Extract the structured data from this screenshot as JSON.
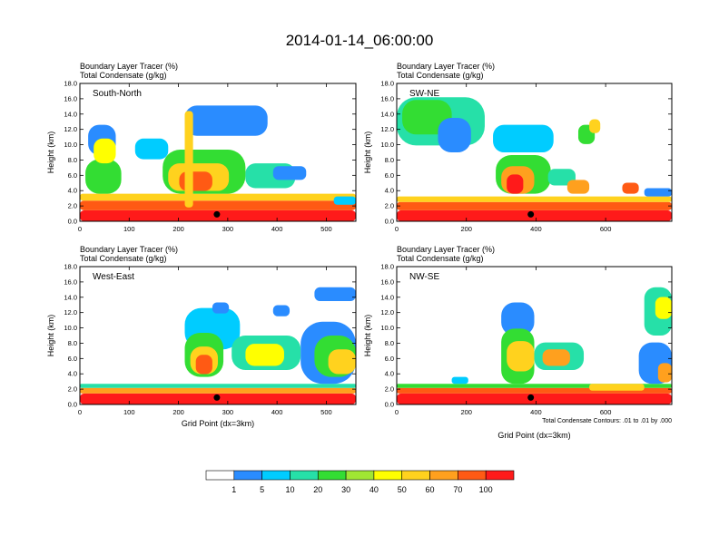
{
  "title": "2014-01-14_06:00:00",
  "field_labels": {
    "tracer": "Boundary Layer Tracer",
    "tracer_unit": "(%)",
    "condensate": "Total Condensate",
    "condensate_unit": "(g/kg)"
  },
  "contour_note": "Total Condensate Contours: .01 to .01 by .000",
  "colorbar": {
    "colors": [
      "#ffffff",
      "#2a8cff",
      "#00ccff",
      "#26e0a8",
      "#33dd33",
      "#a0e633",
      "#ffff00",
      "#ffd21e",
      "#ffa01e",
      "#ff5a14",
      "#ff1a1a"
    ],
    "labels": [
      "1",
      "5",
      "10",
      "20",
      "30",
      "40",
      "50",
      "60",
      "70",
      "100"
    ]
  },
  "chart_data": [
    {
      "type": "heatmap",
      "panel": "South-North",
      "ylabel": "Height (km)",
      "xlabel": "",
      "xlim": [
        0,
        560
      ],
      "ylim": [
        0,
        18
      ],
      "xticks": [
        "0",
        "100",
        "200",
        "300",
        "400",
        "500"
      ],
      "yticks": [
        "0.0",
        "2.0",
        "4.0",
        "6.0",
        "8.0",
        "10.0",
        "12.0",
        "14.0",
        "16.0",
        "18.0"
      ],
      "marker": {
        "x": 278,
        "y": 0.9
      }
    },
    {
      "type": "heatmap",
      "panel": "SW-NE",
      "ylabel": "Height (km)",
      "xlabel": "",
      "xlim": [
        0,
        790
      ],
      "ylim": [
        0,
        18
      ],
      "xticks": [
        "0",
        "200",
        "400",
        "600"
      ],
      "yticks": [
        "0.0",
        "2.0",
        "4.0",
        "6.0",
        "8.0",
        "10.0",
        "12.0",
        "14.0",
        "16.0",
        "18.0"
      ],
      "marker": {
        "x": 385,
        "y": 0.9
      }
    },
    {
      "type": "heatmap",
      "panel": "West-East",
      "ylabel": "Height (km)",
      "xlabel": "Grid Point (dx=3km)",
      "xlim": [
        0,
        560
      ],
      "ylim": [
        0,
        18
      ],
      "xticks": [
        "0",
        "100",
        "200",
        "300",
        "400",
        "500"
      ],
      "yticks": [
        "0.0",
        "2.0",
        "4.0",
        "6.0",
        "8.0",
        "10.0",
        "12.0",
        "14.0",
        "16.0",
        "18.0"
      ],
      "marker": {
        "x": 278,
        "y": 0.9
      }
    },
    {
      "type": "heatmap",
      "panel": "NW-SE",
      "ylabel": "Height (km)",
      "xlabel": "Grid Point (dx=3km)",
      "xlim": [
        0,
        790
      ],
      "ylim": [
        0,
        18
      ],
      "xticks": [
        "0",
        "200",
        "400",
        "600"
      ],
      "yticks": [
        "0.0",
        "2.0",
        "4.0",
        "6.0",
        "8.0",
        "10.0",
        "12.0",
        "14.0",
        "16.0",
        "18.0"
      ],
      "marker": {
        "x": 385,
        "y": 0.9
      }
    }
  ]
}
